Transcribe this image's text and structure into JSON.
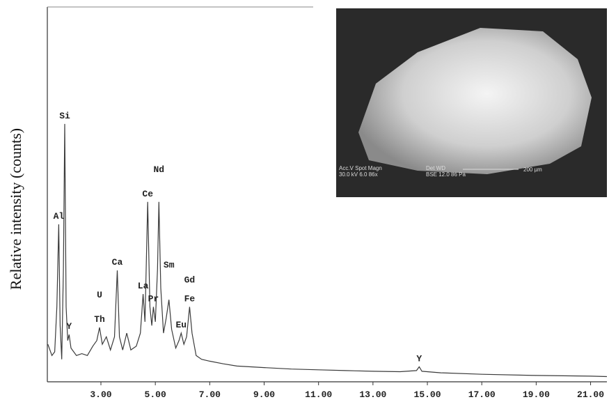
{
  "chart_data": {
    "type": "line",
    "y_label": "Relative intensity (counts)",
    "color": "#3a3a3a",
    "x": [
      1.05,
      1.2,
      1.3,
      1.38,
      1.45,
      1.5,
      1.56,
      1.62,
      1.67,
      1.72,
      1.78,
      1.83,
      1.9,
      2.1,
      2.3,
      2.5,
      2.7,
      2.85,
      2.95,
      3.05,
      3.2,
      3.35,
      3.5,
      3.6,
      3.68,
      3.8,
      3.95,
      4.1,
      4.3,
      4.45,
      4.55,
      4.62,
      4.72,
      4.8,
      4.87,
      4.93,
      5.0,
      5.08,
      5.13,
      5.2,
      5.3,
      5.4,
      5.5,
      5.6,
      5.75,
      5.87,
      5.95,
      6.05,
      6.15,
      6.26,
      6.35,
      6.5,
      6.7,
      7.0,
      7.5,
      8.0,
      9.0,
      10.0,
      11.0,
      12.0,
      13.0,
      14.0,
      14.6,
      14.7,
      14.8,
      15.5,
      17.0,
      19.0,
      21.0,
      21.6
    ],
    "values": [
      100,
      70,
      80,
      200,
      420,
      150,
      60,
      300,
      688,
      200,
      110,
      126,
      90,
      70,
      75,
      70,
      95,
      110,
      145,
      100,
      120,
      85,
      120,
      297,
      120,
      85,
      130,
      85,
      95,
      130,
      234,
      160,
      480,
      200,
      150,
      200,
      160,
      300,
      480,
      250,
      130,
      170,
      219,
      140,
      90,
      110,
      130,
      100,
      120,
      200,
      130,
      70,
      60,
      55,
      48,
      42,
      38,
      34,
      32,
      30,
      28,
      27,
      30,
      40,
      28,
      24,
      20,
      17,
      15,
      14
    ],
    "xlim": [
      1.03,
      21.6
    ],
    "ylim": [
      0,
      1000
    ],
    "xticks": [
      {
        "value": 3,
        "label": "3.00"
      },
      {
        "value": 5,
        "label": "5.00"
      },
      {
        "value": 7,
        "label": "7.00"
      },
      {
        "value": 9,
        "label": "9.00"
      },
      {
        "value": 11,
        "label": "11.00"
      },
      {
        "value": 13,
        "label": "13.00"
      },
      {
        "value": 15,
        "label": "15.00"
      },
      {
        "value": 17,
        "label": "17.00"
      },
      {
        "value": 19,
        "label": "19.00"
      },
      {
        "value": 21,
        "label": "21.00"
      }
    ],
    "annotations": [
      {
        "text": "Al",
        "x": 1.45,
        "y": 420
      },
      {
        "text": "Si",
        "x": 1.67,
        "y": 688
      },
      {
        "text": "Y",
        "x": 1.83,
        "y": 126
      },
      {
        "text": "Th",
        "x": 2.95,
        "y": 145
      },
      {
        "text": "U",
        "x": 2.95,
        "y": 210
      },
      {
        "text": "Ca",
        "x": 3.6,
        "y": 297
      },
      {
        "text": "La",
        "x": 4.55,
        "y": 234
      },
      {
        "text": "Ce",
        "x": 4.72,
        "y": 480
      },
      {
        "text": "Pr",
        "x": 4.93,
        "y": 200
      },
      {
        "text": "Nd",
        "x": 5.13,
        "y": 545
      },
      {
        "text": "Sm",
        "x": 5.5,
        "y": 290
      },
      {
        "text": "Eu",
        "x": 5.95,
        "y": 130
      },
      {
        "text": "Gd",
        "x": 6.26,
        "y": 250
      },
      {
        "text": "Fe",
        "x": 6.26,
        "y": 200
      },
      {
        "text": "Y",
        "x": 14.7,
        "y": 40
      }
    ]
  },
  "inset_labels": [
    "Acc.V  Spot Magn",
    "30.0 kV 6.0  86x",
    "Det WD",
    "BSE 12.0 86 Pa",
    "200 µm"
  ]
}
